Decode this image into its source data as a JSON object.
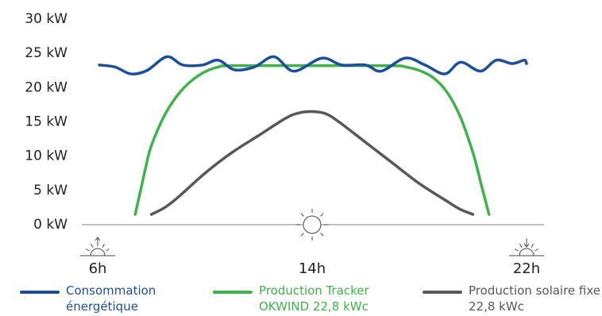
{
  "chart_data": {
    "type": "line",
    "xlim": [
      6,
      22
    ],
    "xticks": [
      {
        "value": 6,
        "label": "6h"
      },
      {
        "value": 14,
        "label": "14h"
      },
      {
        "value": 22,
        "label": "22h"
      }
    ],
    "ylim": [
      0,
      30
    ],
    "yticks": [
      {
        "value": 0,
        "label": "0 kW"
      },
      {
        "value": 5,
        "label": "5 kW"
      },
      {
        "value": 10,
        "label": "10 kW"
      },
      {
        "value": 15,
        "label": "15 kW"
      },
      {
        "value": 20,
        "label": "20 kW"
      },
      {
        "value": 25,
        "label": "25 kW"
      },
      {
        "value": 30,
        "label": "30 kW"
      }
    ],
    "series": [
      {
        "name": "Consommation énergétique",
        "color": "#1b4f9a",
        "x": [
          6.06,
          6.65,
          7.24,
          7.84,
          8.58,
          9.17,
          9.91,
          10.5,
          11.1,
          11.84,
          12.58,
          13.32,
          14.36,
          15.1,
          15.99,
          16.58,
          17.47,
          18.21,
          18.95,
          19.54,
          20.28,
          20.87,
          21.47,
          21.91,
          22.0
        ],
        "values": [
          23.3,
          23.0,
          22.0,
          22.5,
          24.5,
          23.3,
          23.3,
          24.0,
          22.6,
          23.0,
          24.5,
          22.4,
          24.3,
          23.3,
          23.3,
          22.4,
          24.3,
          23.3,
          22.0,
          23.7,
          22.4,
          24.0,
          23.5,
          24.0,
          23.5
        ]
      },
      {
        "name": "Production Tracker OKWIND 22,8 kWc",
        "color": "#3fb34a",
        "x": [
          7.4,
          7.6,
          7.8,
          8.0,
          8.5,
          9.0,
          9.5,
          10.0,
          10.5,
          11.0,
          14.0,
          17.0,
          17.5,
          18.0,
          18.5,
          19.0,
          19.5,
          20.0,
          20.3,
          20.6
        ],
        "values": [
          1.5,
          5,
          8.5,
          11.5,
          16,
          19,
          21,
          22.3,
          23,
          23.2,
          23.2,
          23.2,
          23,
          22.5,
          21.5,
          19.5,
          16,
          10.5,
          6,
          1.5
        ]
      },
      {
        "name": "Production solaire fixe 22,8 kWc",
        "color": "#58585a",
        "x": [
          8.0,
          8.5,
          9.0,
          10.0,
          11.0,
          12.0,
          13.0,
          13.5,
          14.0,
          14.5,
          15.0,
          16.0,
          17.0,
          18.0,
          19.0,
          19.5,
          20.0
        ],
        "values": [
          1.5,
          2.5,
          4,
          7.5,
          10.5,
          13,
          15.5,
          16.3,
          16.5,
          16.2,
          15,
          12,
          9,
          6,
          3.5,
          2.3,
          1.5
        ]
      }
    ]
  }
}
